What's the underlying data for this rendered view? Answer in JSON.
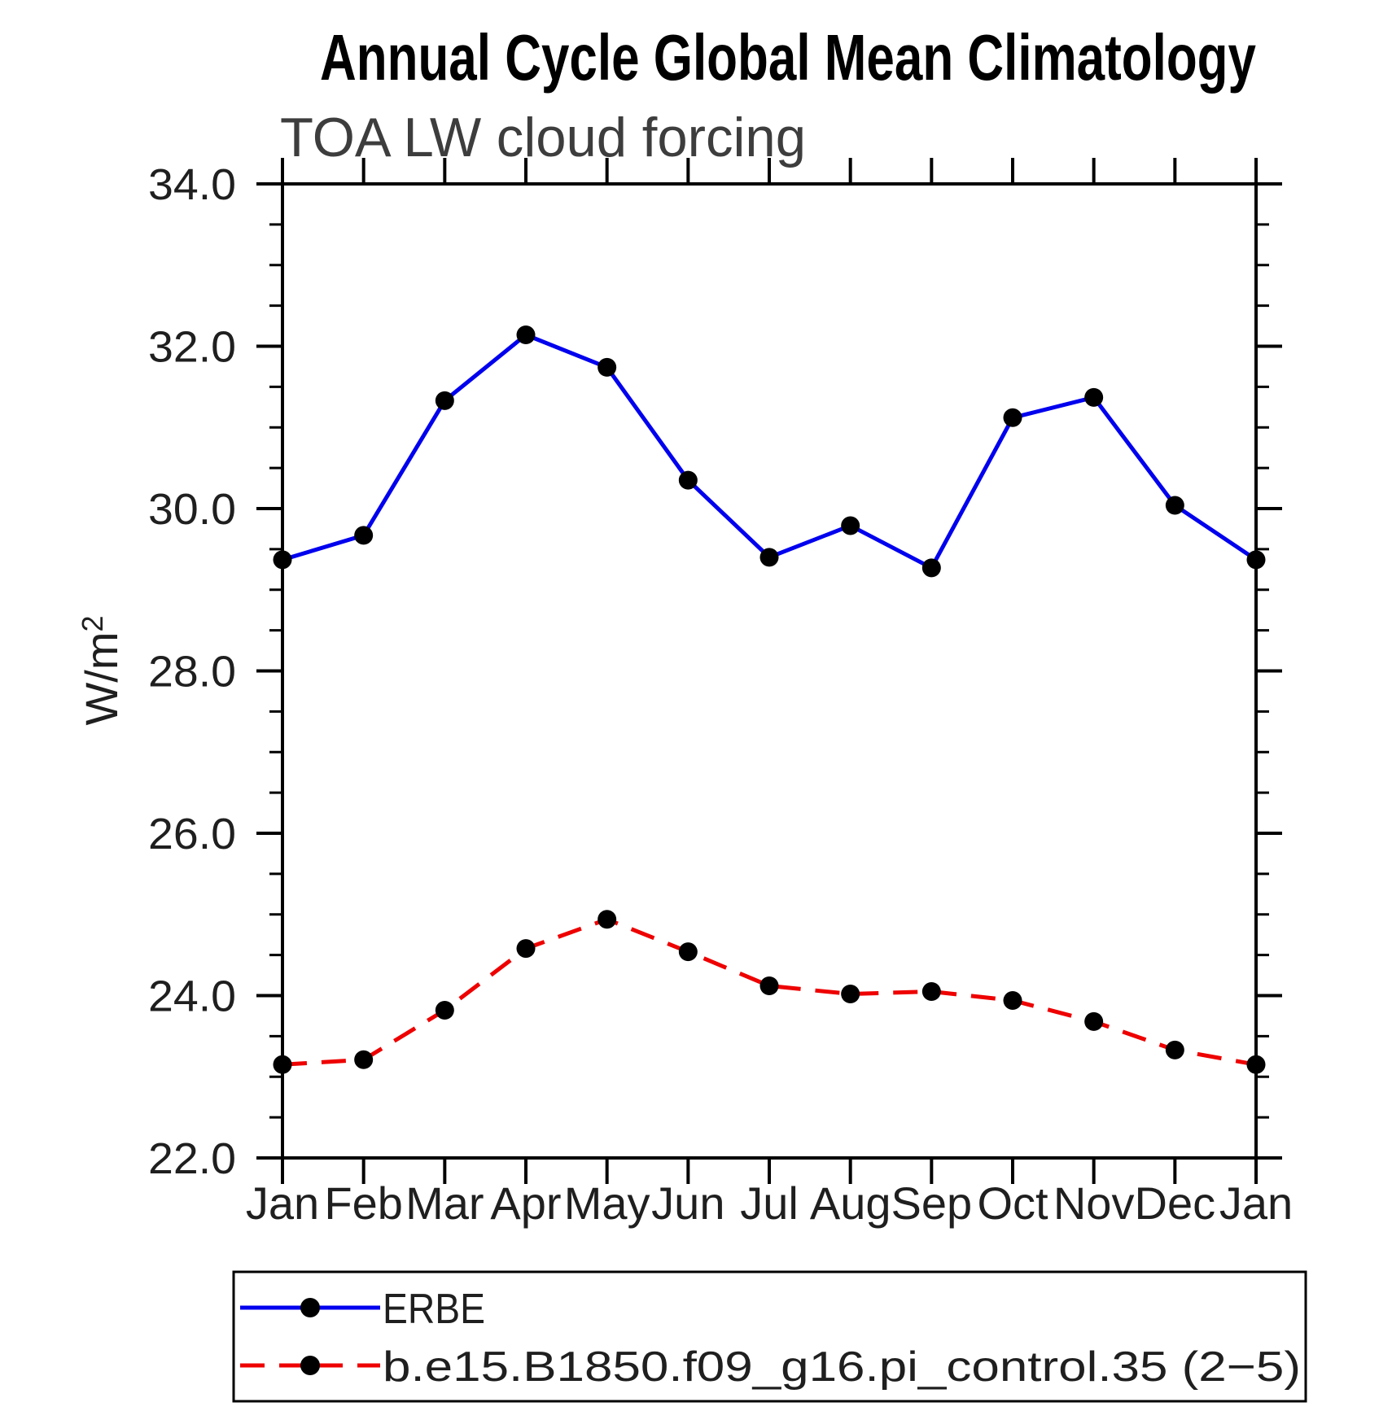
{
  "page_title": "Annual Cycle Global Mean Climatology",
  "chart_data": {
    "type": "line",
    "title": "Annual Cycle Global Mean Climatology",
    "subtitle": "TOA LW cloud forcing",
    "ylabel": "W/m²",
    "ylabel_base": "W/m",
    "ylabel_sup": "2",
    "categories": [
      "Jan",
      "Feb",
      "Mar",
      "Apr",
      "May",
      "Jun",
      "Jul",
      "Aug",
      "Sep",
      "Oct",
      "Nov",
      "Dec",
      "Jan"
    ],
    "series": [
      {
        "name": "ERBE",
        "color": "#0000ee",
        "style": "solid",
        "marker": "filled-circle",
        "marker_color": "#000000",
        "values": [
          29.37,
          29.67,
          31.33,
          32.14,
          31.74,
          30.35,
          29.4,
          29.79,
          29.27,
          31.12,
          31.37,
          30.04,
          29.37
        ]
      },
      {
        "name": "b.e15.B1850.f09_g16.pi_control.35 (2−5)",
        "color": "#ee0000",
        "style": "dashed",
        "marker": "filled-circle",
        "marker_color": "#000000",
        "values": [
          23.15,
          23.21,
          23.82,
          24.58,
          24.94,
          24.54,
          24.12,
          24.02,
          24.05,
          23.94,
          23.68,
          23.33,
          23.15
        ]
      }
    ],
    "ylim": [
      22,
      34
    ],
    "y_major_ticks": [
      {
        "value": 34,
        "label": "34.0"
      },
      {
        "value": 32,
        "label": "32.0"
      },
      {
        "value": 30,
        "label": "30.0"
      },
      {
        "value": 28,
        "label": "28.0"
      },
      {
        "value": 26,
        "label": "26.0"
      },
      {
        "value": 24,
        "label": "24.0"
      },
      {
        "value": 22,
        "label": "22.0"
      }
    ],
    "y_minor_step": 0.5,
    "grid": false,
    "legend_position": "bottom",
    "axis_color": "#000000",
    "text_color": "#1f1f1f",
    "subtitle_color": "#3d3d3d"
  }
}
